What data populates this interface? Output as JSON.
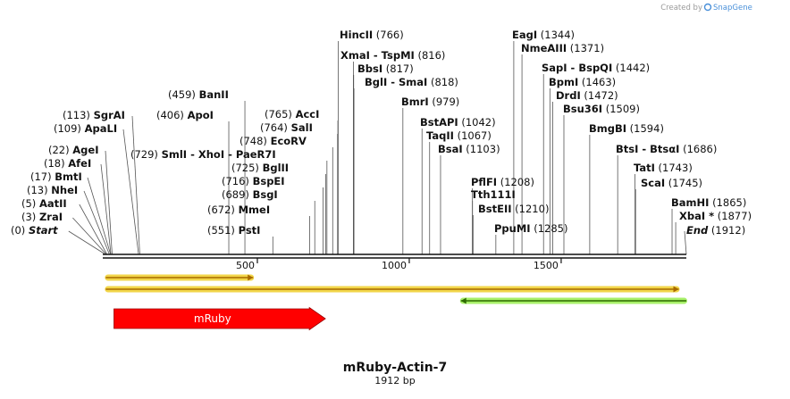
{
  "credit": {
    "prefix": "Created by",
    "brand": "SnapGene"
  },
  "map": {
    "name": "mRuby-Actin-7",
    "length_label": "1912 bp",
    "length": 1912
  },
  "ticks": [
    {
      "value": 500,
      "label": "500"
    },
    {
      "value": 1000,
      "label": "1000"
    },
    {
      "value": 1500,
      "label": "1500"
    }
  ],
  "sites": [
    {
      "id": "start",
      "pos_label": "(0)",
      "name": "Start",
      "pos": 0,
      "italic": true
    },
    {
      "id": "zrai",
      "pos_label": "(3)",
      "name": "ZraI",
      "pos": 3
    },
    {
      "id": "aatii",
      "pos_label": "(5)",
      "name": "AatII",
      "pos": 5
    },
    {
      "id": "nhei",
      "pos_label": "(13)",
      "name": "NheI",
      "pos": 13
    },
    {
      "id": "bmti",
      "pos_label": "(17)",
      "name": "BmtI",
      "pos": 17
    },
    {
      "id": "afei",
      "pos_label": "(18)",
      "name": "AfeI",
      "pos": 18
    },
    {
      "id": "agei",
      "pos_label": "(22)",
      "name": "AgeI",
      "pos": 22
    },
    {
      "id": "apali",
      "pos_label": "(109)",
      "name": "ApaLI",
      "pos": 109
    },
    {
      "id": "sgrai",
      "pos_label": "(113)",
      "name": "SgrAI",
      "pos": 113
    },
    {
      "id": "apoi",
      "pos_label": "(406)",
      "name": "ApoI",
      "pos": 406
    },
    {
      "id": "banii",
      "pos_label": "(459)",
      "name": "BanII",
      "pos": 459
    },
    {
      "id": "psti",
      "pos_label": "(551)",
      "name": "PstI",
      "pos": 551
    },
    {
      "id": "mmei",
      "pos_label": "(672)",
      "name": "MmeI",
      "pos": 672
    },
    {
      "id": "bsgi",
      "pos_label": "(689)",
      "name": "BsgI",
      "pos": 689
    },
    {
      "id": "bspei",
      "pos_label": "(716)",
      "name": "BspEI",
      "pos": 716
    },
    {
      "id": "bglii",
      "pos_label": "(725)",
      "name": "BglII",
      "pos": 725
    },
    {
      "id": "smli",
      "pos_label": "(729)",
      "name": "SmlI - XhoI - PaeR7I",
      "pos": 729
    },
    {
      "id": "ecorv",
      "pos_label": "(748)",
      "name": "EcoRV",
      "pos": 748
    },
    {
      "id": "sali",
      "pos_label": "(764)",
      "name": "SalI",
      "pos": 764
    },
    {
      "id": "acci",
      "pos_label": "(765)",
      "name": "AccI",
      "pos": 765
    },
    {
      "id": "hincii",
      "pos_label": "(766)",
      "name": "HincII",
      "pos": 766
    },
    {
      "id": "xmai",
      "pos_label": "(816)",
      "name": "XmaI - TspMI",
      "pos": 816
    },
    {
      "id": "bbsi",
      "pos_label": "(817)",
      "name": "BbsI",
      "pos": 817
    },
    {
      "id": "bgli",
      "pos_label": "(818)",
      "name": "BglI - SmaI",
      "pos": 818
    },
    {
      "id": "bmri",
      "pos_label": "(979)",
      "name": "BmrI",
      "pos": 979
    },
    {
      "id": "bstapi",
      "pos_label": "(1042)",
      "name": "BstAPI",
      "pos": 1042
    },
    {
      "id": "taqii",
      "pos_label": "(1067)",
      "name": "TaqII",
      "pos": 1067
    },
    {
      "id": "bsai",
      "pos_label": "(1103)",
      "name": "BsaI",
      "pos": 1103
    },
    {
      "id": "pflfi",
      "pos_label": "(1208)",
      "name": "PflFI",
      "pos": 1208
    },
    {
      "id": "tth111i",
      "pos_label": "",
      "name": "Tth111I",
      "pos": 1208
    },
    {
      "id": "bsteii",
      "pos_label": "(1210)",
      "name": "BstEII",
      "pos": 1210
    },
    {
      "id": "ppumi",
      "pos_label": "(1285)",
      "name": "PpuMI",
      "pos": 1285
    },
    {
      "id": "eagi",
      "pos_label": "(1344)",
      "name": "EagI",
      "pos": 1344
    },
    {
      "id": "nmeaiii",
      "pos_label": "(1371)",
      "name": "NmeAIII",
      "pos": 1371
    },
    {
      "id": "sapi",
      "pos_label": "(1442)",
      "name": "SapI - BspQI",
      "pos": 1442
    },
    {
      "id": "bpmi",
      "pos_label": "(1463)",
      "name": "BpmI",
      "pos": 1463
    },
    {
      "id": "drdi",
      "pos_label": "(1472)",
      "name": "DrdI",
      "pos": 1472
    },
    {
      "id": "bsu36i",
      "pos_label": "(1509)",
      "name": "Bsu36I",
      "pos": 1509
    },
    {
      "id": "bmgbi",
      "pos_label": "(1594)",
      "name": "BmgBI",
      "pos": 1594
    },
    {
      "id": "btsi",
      "pos_label": "(1686)",
      "name": "BtsI - BtsαI",
      "pos": 1686
    },
    {
      "id": "tati",
      "pos_label": "(1743)",
      "name": "TatI",
      "pos": 1743
    },
    {
      "id": "scai",
      "pos_label": "(1745)",
      "name": "ScaI",
      "pos": 1745
    },
    {
      "id": "bamhi",
      "pos_label": "(1865)",
      "name": "BamHI",
      "pos": 1865
    },
    {
      "id": "xbai",
      "pos_label": "(1877)",
      "name": "XbaI *",
      "pos": 1877
    },
    {
      "id": "end",
      "pos_label": "(1912)",
      "name": "End",
      "pos": 1912,
      "italic": true
    }
  ],
  "features": [
    {
      "id": "orf-short",
      "name": "",
      "start": 1,
      "end": 486,
      "direction": "forward",
      "color": "#a86a00",
      "glow": "#f2d64a"
    },
    {
      "id": "orf-long",
      "name": "",
      "start": 1,
      "end": 1887,
      "direction": "forward",
      "color": "#a86a00",
      "glow": "#f2d64a"
    },
    {
      "id": "orf-reverse",
      "name": "",
      "start": 1170,
      "end": 1912,
      "direction": "reverse",
      "color": "#2d6b00",
      "glow": "#a8f06a"
    },
    {
      "id": "mruby",
      "name": "mRuby",
      "start": 28,
      "end": 724,
      "direction": "forward",
      "color": "#ff0000",
      "glow": ""
    }
  ],
  "colors": {
    "backbone": "#111111",
    "credit_brand": "#4a90d9",
    "mruby": "#ff0000"
  }
}
